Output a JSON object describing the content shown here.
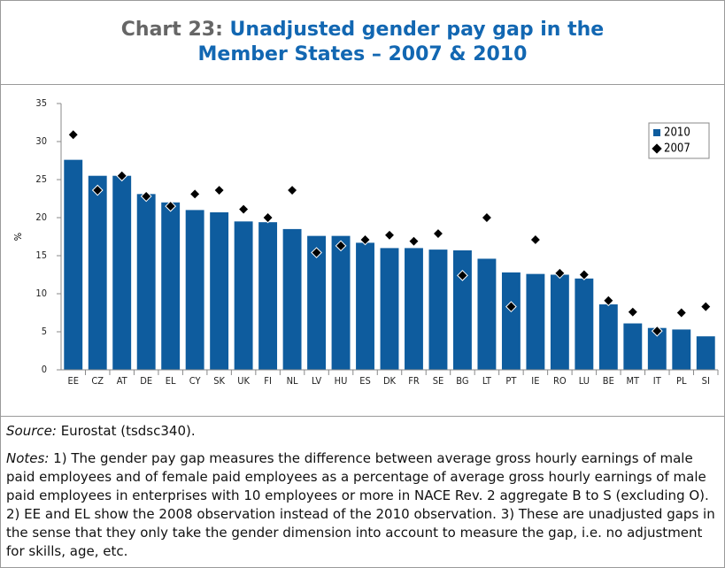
{
  "header": {
    "label": "Chart 23:",
    "title": "Unadjusted gender pay gap in the Member States – 2007 & 2010"
  },
  "chart_data": {
    "type": "bar",
    "ylabel": "%",
    "categories": [
      "EE",
      "CZ",
      "AT",
      "DE",
      "EL",
      "CY",
      "SK",
      "UK",
      "FI",
      "NL",
      "LV",
      "HU",
      "ES",
      "DK",
      "FR",
      "SE",
      "BG",
      "LT",
      "PT",
      "IE",
      "RO",
      "LU",
      "BE",
      "MT",
      "IT",
      "PL",
      "SI"
    ],
    "series": [
      {
        "name": "2010",
        "color": "#0e5c9e",
        "marker": "bar",
        "values": [
          27.6,
          25.5,
          25.5,
          23.1,
          22.0,
          21.0,
          20.7,
          19.5,
          19.4,
          18.5,
          17.6,
          17.6,
          16.7,
          16.0,
          16.0,
          15.8,
          15.7,
          14.6,
          12.8,
          12.6,
          12.5,
          12.0,
          8.6,
          6.1,
          5.5,
          5.3,
          4.4
        ]
      },
      {
        "name": "2007",
        "color": "#000000",
        "marker": "diamond",
        "values": [
          30.9,
          23.6,
          25.5,
          22.8,
          21.5,
          23.1,
          23.6,
          21.1,
          20.0,
          23.6,
          15.4,
          16.3,
          17.1,
          17.7,
          16.9,
          17.9,
          12.4,
          20.0,
          8.3,
          17.1,
          12.7,
          12.5,
          9.1,
          7.6,
          5.1,
          7.5,
          8.3
        ]
      }
    ],
    "ylim": [
      0,
      35
    ],
    "yticks": [
      0,
      5,
      10,
      15,
      20,
      25,
      30,
      35
    ],
    "legend": "upper right"
  },
  "footer": {
    "source_label": "Source:",
    "source": "Eurostat (tsdsc340).",
    "notes_label": "Notes:",
    "notes": "1) The gender pay gap measures the difference between average gross hourly earnings of male paid employees and of female paid employees as a percentage of average gross hourly earnings of male paid employees in enterprises with 10 employees or more in NACE Rev. 2 aggregate B to S (excluding O). 2) EE and EL show the 2008 observation instead of the 2010 observation. 3) These are unadjusted gaps in the sense that they only take the gender dimension into account to measure the gap, i.e. no adjustment for skills, age, etc."
  }
}
